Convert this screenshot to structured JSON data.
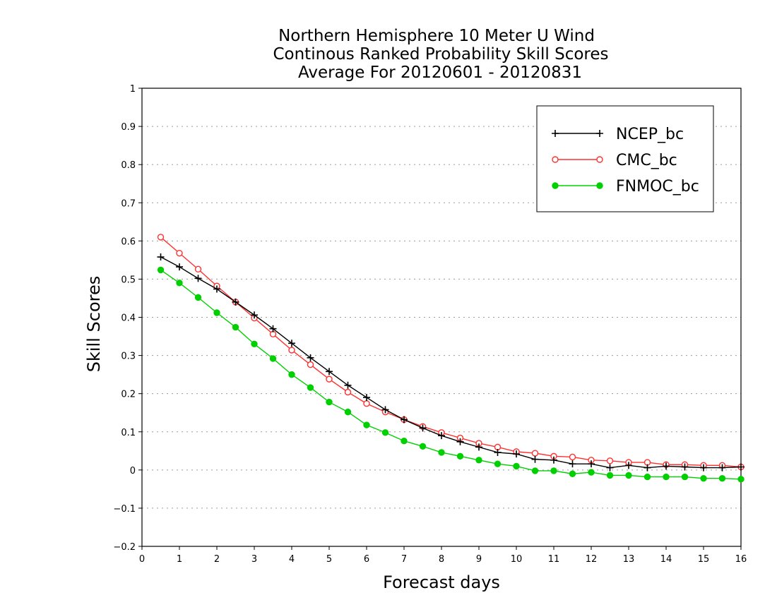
{
  "chart_data": {
    "type": "line",
    "title": [
      "Northern Hemisphere 10 Meter U Wind",
      "Continous Ranked Probability Skill Scores",
      "Average For 20120601 - 20120831"
    ],
    "xlabel": "Forecast days",
    "ylabel": "Skill Scores",
    "xlim": [
      0,
      16
    ],
    "ylim": [
      -0.2,
      1
    ],
    "xticks": [
      "0",
      "1",
      "2",
      "3",
      "4",
      "5",
      "6",
      "7",
      "8",
      "9",
      "10",
      "11",
      "12",
      "13",
      "14",
      "15",
      "16"
    ],
    "yticks": [
      "−0.2",
      "−0.1",
      "0",
      "0.1",
      "0.2",
      "0.3",
      "0.4",
      "0.5",
      "0.6",
      "0.7",
      "0.8",
      "0.9",
      "1"
    ],
    "grid": "horizontal dotted",
    "legend_position": "top-right",
    "x": [
      0.5,
      1,
      1.5,
      2,
      2.5,
      3,
      3.5,
      4,
      4.5,
      5,
      5.5,
      6,
      6.5,
      7,
      7.5,
      8,
      8.5,
      9,
      9.5,
      10,
      10.5,
      11,
      11.5,
      12,
      12.5,
      13,
      13.5,
      14,
      14.5,
      15,
      15.5,
      16
    ],
    "series": [
      {
        "name": "NCEP_bc",
        "color": "#000000",
        "marker": "plus",
        "values": [
          0.558,
          0.532,
          0.502,
          0.474,
          0.44,
          0.406,
          0.37,
          0.332,
          0.294,
          0.258,
          0.222,
          0.19,
          0.158,
          0.132,
          0.11,
          0.09,
          0.074,
          0.06,
          0.046,
          0.042,
          0.028,
          0.026,
          0.016,
          0.016,
          0.006,
          0.012,
          0.006,
          0.01,
          0.008,
          0.006,
          0.006,
          0.008
        ]
      },
      {
        "name": "CMC_bc",
        "color": "#ff3030",
        "marker": "open-circle",
        "values": [
          0.61,
          0.568,
          0.526,
          0.482,
          0.44,
          0.398,
          0.356,
          0.314,
          0.276,
          0.238,
          0.204,
          0.174,
          0.152,
          0.132,
          0.114,
          0.098,
          0.084,
          0.07,
          0.06,
          0.048,
          0.044,
          0.036,
          0.034,
          0.026,
          0.024,
          0.02,
          0.02,
          0.014,
          0.014,
          0.012,
          0.012,
          0.008
        ]
      },
      {
        "name": "FNMOC_bc",
        "color": "#00d000",
        "marker": "filled-circle",
        "values": [
          0.524,
          0.49,
          0.452,
          0.412,
          0.374,
          0.33,
          0.292,
          0.25,
          0.216,
          0.178,
          0.152,
          0.118,
          0.098,
          0.076,
          0.062,
          0.046,
          0.036,
          0.026,
          0.016,
          0.01,
          -0.002,
          -0.002,
          -0.01,
          -0.006,
          -0.014,
          -0.014,
          -0.018,
          -0.018,
          -0.018,
          -0.022,
          -0.022,
          -0.024
        ]
      }
    ]
  }
}
